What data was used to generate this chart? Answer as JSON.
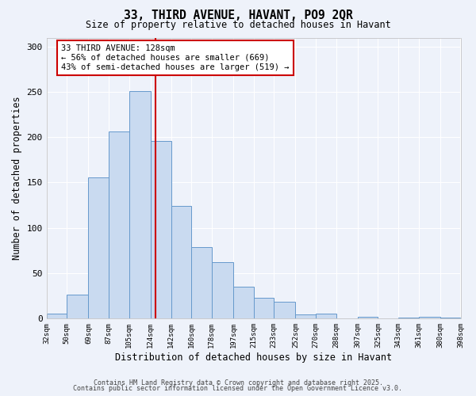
{
  "title": "33, THIRD AVENUE, HAVANT, PO9 2QR",
  "subtitle": "Size of property relative to detached houses in Havant",
  "xlabel": "Distribution of detached houses by size in Havant",
  "ylabel": "Number of detached properties",
  "bar_edges": [
    32,
    50,
    69,
    87,
    105,
    124,
    142,
    160,
    178,
    197,
    215,
    233,
    252,
    270,
    288,
    307,
    325,
    343,
    361,
    380,
    398
  ],
  "bar_heights": [
    5,
    26,
    156,
    206,
    251,
    196,
    124,
    79,
    62,
    35,
    23,
    18,
    4,
    5,
    0,
    2,
    0,
    1,
    2,
    1
  ],
  "bar_color": "#c9daf0",
  "bar_edge_color": "#6699cc",
  "property_line_x": 128,
  "property_line_color": "#cc0000",
  "annotation_title": "33 THIRD AVENUE: 128sqm",
  "annotation_line1": "← 56% of detached houses are smaller (669)",
  "annotation_line2": "43% of semi-detached houses are larger (519) →",
  "annotation_box_color": "#cc0000",
  "ylim": [
    0,
    310
  ],
  "yticks": [
    0,
    50,
    100,
    150,
    200,
    250,
    300
  ],
  "background_color": "#eef2fa",
  "plot_bg_color": "#eef2fa",
  "footer1": "Contains HM Land Registry data © Crown copyright and database right 2025.",
  "footer2": "Contains public sector information licensed under the Open Government Licence v3.0.",
  "tick_labels": [
    "32sqm",
    "50sqm",
    "69sqm",
    "87sqm",
    "105sqm",
    "124sqm",
    "142sqm",
    "160sqm",
    "178sqm",
    "197sqm",
    "215sqm",
    "233sqm",
    "252sqm",
    "270sqm",
    "288sqm",
    "307sqm",
    "325sqm",
    "343sqm",
    "361sqm",
    "380sqm",
    "398sqm"
  ]
}
